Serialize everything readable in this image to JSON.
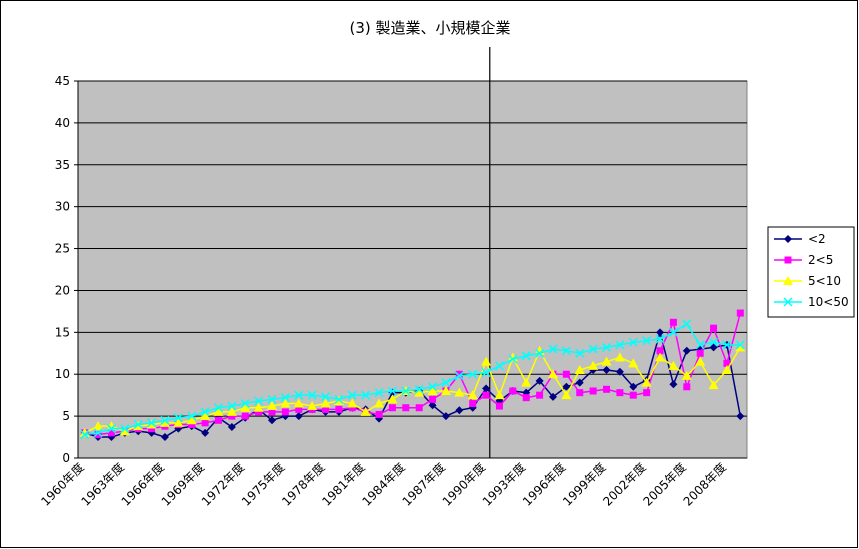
{
  "chart_data": {
    "type": "line",
    "title": "(3) 製造業、小規模企業",
    "categories": [
      "1960年度",
      null,
      null,
      "1963年度",
      null,
      null,
      "1966年度",
      null,
      null,
      "1969年度",
      null,
      null,
      "1972年度",
      null,
      null,
      "1975年度",
      null,
      null,
      "1978年度",
      null,
      null,
      "1981年度",
      null,
      null,
      "1984年度",
      null,
      null,
      "1987年度",
      null,
      null,
      "1990年度",
      null,
      null,
      "1993年度",
      null,
      null,
      "1996年度",
      null,
      null,
      "1999年度",
      null,
      null,
      "2002年度",
      null,
      null,
      "2005年度",
      null,
      null,
      "2008年度",
      null
    ],
    "series": [
      {
        "name": "<2",
        "color": "#000080",
        "marker": "diamond",
        "values": [
          3.0,
          2.5,
          2.5,
          3.0,
          3.2,
          3.0,
          2.5,
          3.5,
          3.8,
          3.0,
          4.8,
          3.7,
          4.8,
          5.8,
          4.5,
          5.0,
          5.0,
          5.8,
          5.5,
          5.5,
          6.0,
          5.8,
          4.7,
          7.8,
          7.8,
          8.0,
          6.3,
          5.0,
          5.7,
          6.0,
          8.3,
          6.8,
          8.0,
          7.8,
          9.2,
          7.3,
          8.5,
          9.0,
          10.5,
          10.5,
          10.3,
          8.5,
          9.3,
          15.0,
          8.8,
          12.8,
          13.0,
          13.2,
          13.5,
          5.0
        ]
      },
      {
        "name": "2<5",
        "color": "#FF00FF",
        "marker": "square",
        "values": [
          3.0,
          2.8,
          3.0,
          3.2,
          3.5,
          3.5,
          3.8,
          4.0,
          4.0,
          4.2,
          4.5,
          5.0,
          5.0,
          5.5,
          5.5,
          5.5,
          5.8,
          5.8,
          5.8,
          5.8,
          6.0,
          5.5,
          5.2,
          6.0,
          6.0,
          6.0,
          7.0,
          8.0,
          10.0,
          6.5,
          7.5,
          6.2,
          8.0,
          7.2,
          7.5,
          10.0,
          10.0,
          7.8,
          8.0,
          8.2,
          7.8,
          7.5,
          7.8,
          12.8,
          16.2,
          8.5,
          12.5,
          15.5,
          11.3,
          17.3
        ]
      },
      {
        "name": "5<10",
        "color": "#FFFF00",
        "marker": "triangle",
        "values": [
          3.0,
          3.8,
          3.8,
          3.2,
          3.8,
          4.0,
          4.2,
          4.2,
          4.5,
          5.0,
          5.5,
          5.5,
          6.0,
          6.0,
          6.2,
          6.5,
          6.5,
          6.2,
          6.5,
          6.8,
          6.5,
          5.5,
          6.5,
          7.0,
          8.0,
          7.8,
          8.0,
          8.0,
          7.8,
          7.5,
          11.5,
          7.5,
          12.0,
          9.0,
          12.8,
          10.0,
          7.5,
          10.5,
          11.0,
          11.5,
          12.0,
          11.3,
          9.0,
          12.0,
          11.0,
          9.8,
          11.5,
          8.7,
          10.5,
          13.2
        ]
      },
      {
        "name": "10<50",
        "color": "#00FFFF",
        "marker": "x",
        "values": [
          2.8,
          3.0,
          3.5,
          3.5,
          4.0,
          4.2,
          4.5,
          4.8,
          5.0,
          5.5,
          6.0,
          6.2,
          6.5,
          6.8,
          7.0,
          7.2,
          7.5,
          7.5,
          7.3,
          7.0,
          7.5,
          7.5,
          7.8,
          8.0,
          8.0,
          8.2,
          8.5,
          9.0,
          9.8,
          10.0,
          10.2,
          11.0,
          11.8,
          12.2,
          12.5,
          13.0,
          12.8,
          12.5,
          13.0,
          13.2,
          13.5,
          13.8,
          14.0,
          14.2,
          15.0,
          16.0,
          13.5,
          13.8,
          13.5,
          13.5
        ]
      }
    ],
    "ylim": [
      0,
      45
    ],
    "yticks": [
      0,
      5,
      10,
      15,
      20,
      25,
      30,
      35,
      40,
      45
    ],
    "grid": true,
    "legend": "right",
    "plot_background": "#C0C0C0"
  }
}
